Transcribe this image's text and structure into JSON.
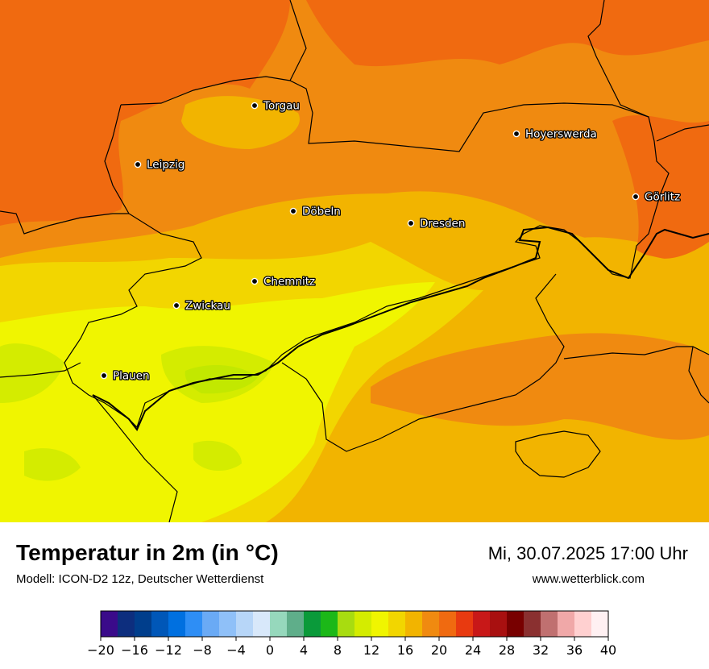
{
  "map": {
    "cities": [
      {
        "name": "Torgau",
        "icon": "city-dot-icon"
      },
      {
        "name": "Leipzig",
        "icon": "city-dot-icon"
      },
      {
        "name": "Hoyerswerda",
        "icon": "city-dot-icon"
      },
      {
        "name": "Döbeln",
        "icon": "city-dot-icon"
      },
      {
        "name": "Dresden",
        "icon": "city-dot-icon"
      },
      {
        "name": "Görlitz",
        "icon": "city-dot-icon"
      },
      {
        "name": "Chemnitz",
        "icon": "city-dot-icon"
      },
      {
        "name": "Zwickau",
        "icon": "city-dot-icon"
      },
      {
        "name": "Plauen",
        "icon": "city-dot-icon"
      }
    ],
    "field_colors": {
      "t16": "#f0f500",
      "t14": "#d4ec00",
      "t12": "#c2e800",
      "t10": "#a8dc10",
      "t18": "#f2d600",
      "t20": "#f2b400",
      "t22": "#f08a10",
      "t24": "#f06a10"
    }
  },
  "footer": {
    "title": "Temperatur in 2m (in °C)",
    "subtitle": "Modell: ICON-D2 12z, Deutscher Wetterdienst",
    "datetime": "Mi, 30.07.2025 17:00 Uhr",
    "website": "www.wetterblick.com"
  },
  "colorbar": {
    "min": -20,
    "max": 40,
    "step": 2,
    "tick_labels": [
      "−20",
      "−16",
      "−12",
      "−8",
      "−4",
      "0",
      "4",
      "8",
      "12",
      "16",
      "20",
      "24",
      "28",
      "32",
      "36",
      "40"
    ],
    "colors": [
      "#3a0b8a",
      "#0d2e7e",
      "#003e8c",
      "#0057b8",
      "#0070e0",
      "#2e8ef5",
      "#6aaaf5",
      "#8fc0f8",
      "#b7d6f8",
      "#d8e8fa",
      "#96d8bc",
      "#5fae8a",
      "#0a9a3a",
      "#1cb818",
      "#a8dc10",
      "#d4ec00",
      "#f0f500",
      "#f2d600",
      "#f2b400",
      "#f08a10",
      "#f06a10",
      "#e83a10",
      "#c81818",
      "#a81010",
      "#780000",
      "#8a3030",
      "#c07070",
      "#f0a8a8",
      "#ffd0d0",
      "#fff0f2"
    ]
  }
}
